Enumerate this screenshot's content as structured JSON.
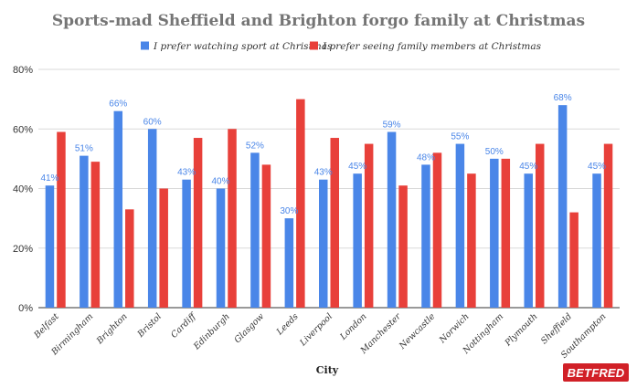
{
  "chart_data": {
    "type": "bar",
    "title": "Sports-mad Sheffield and Brighton forgo family at Christmas",
    "xlabel": "City",
    "ylabel": "",
    "ylim": [
      0,
      80
    ],
    "yticks": [
      "0%",
      "20%",
      "40%",
      "60%",
      "80%"
    ],
    "ytick_values": [
      0,
      20,
      40,
      60,
      80
    ],
    "grid": true,
    "legend_position": "top",
    "categories": [
      "Belfast",
      "Birmingham",
      "Brighton",
      "Bristol",
      "Cardiff",
      "Edinburgh",
      "Glasgow",
      "Leeds",
      "Liverpool",
      "London",
      "Manchester",
      "Newcastle",
      "Norwich",
      "Nottingham",
      "Plymouth",
      "Sheffield",
      "Southampton"
    ],
    "series": [
      {
        "name": "I prefer watching sport at Christmas",
        "color": "#4a86e8",
        "values": [
          41,
          51,
          66,
          60,
          43,
          40,
          52,
          30,
          43,
          45,
          59,
          48,
          55,
          50,
          45,
          68,
          45
        ],
        "data_labels": [
          "41%",
          "51%",
          "66%",
          "60%",
          "43%",
          "40%",
          "52%",
          "30%",
          "43%",
          "45%",
          "59%",
          "48%",
          "55%",
          "50%",
          "45%",
          "68%",
          "45%"
        ]
      },
      {
        "name": "I prefer seeing family members at Christmas",
        "color": "#e8403a",
        "values": [
          59,
          49,
          33,
          40,
          57,
          60,
          48,
          70,
          57,
          55,
          41,
          52,
          45,
          50,
          55,
          32,
          55
        ]
      }
    ]
  },
  "logo": {
    "text": "BETFRED",
    "color": "#d12027"
  }
}
